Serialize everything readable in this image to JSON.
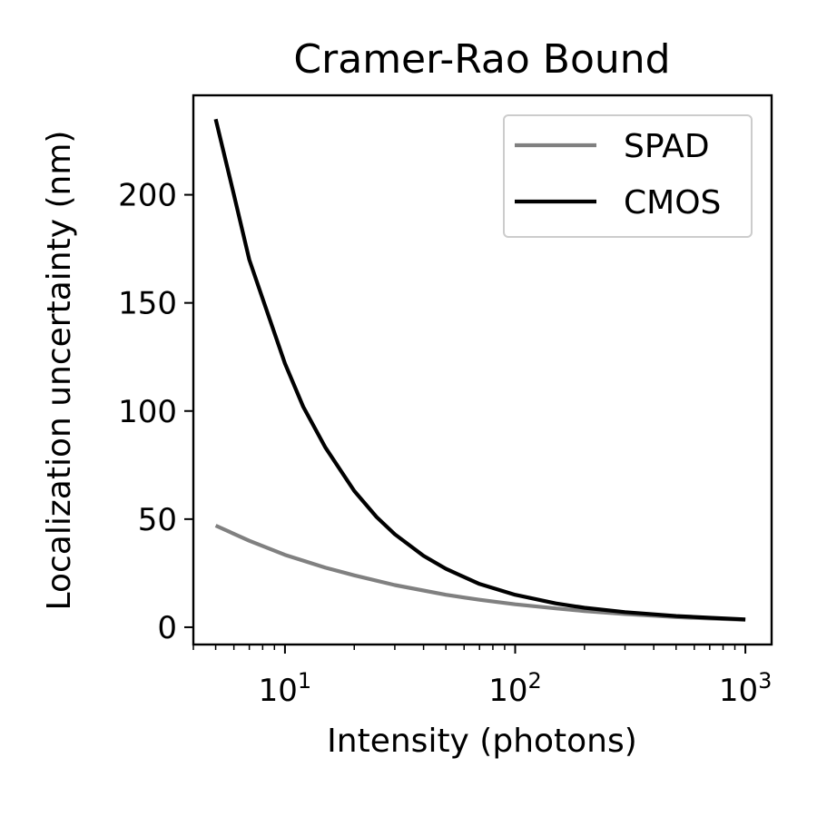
{
  "chart_data": {
    "type": "line",
    "title": "Cramer-Rao Bound",
    "xlabel": "Intensity (photons)",
    "ylabel": "Localization uncertainty (nm)",
    "xscale": "log",
    "xlim": [
      4,
      1300
    ],
    "ylim": [
      -8,
      246
    ],
    "grid": false,
    "legend_position": "top-right",
    "x_ticks": [
      {
        "value": 10,
        "base": "10",
        "exp": "1"
      },
      {
        "value": 100,
        "base": "10",
        "exp": "2"
      },
      {
        "value": 1000,
        "base": "10",
        "exp": "3"
      }
    ],
    "y_ticks": [
      0,
      50,
      100,
      150,
      200
    ],
    "series": [
      {
        "name": "SPAD",
        "color": "#808080",
        "x": [
          5,
          7,
          10,
          15,
          20,
          30,
          50,
          70,
          100,
          150,
          200,
          300,
          500,
          700,
          1000
        ],
        "y": [
          47,
          40,
          33.5,
          27.5,
          24,
          19.5,
          15,
          12.7,
          10.6,
          8.7,
          7.5,
          6.1,
          4.7,
          4.0,
          3.4
        ]
      },
      {
        "name": "CMOS",
        "color": "#000000",
        "x": [
          5,
          6,
          7,
          8,
          10,
          12,
          15,
          20,
          25,
          30,
          40,
          50,
          70,
          100,
          150,
          200,
          300,
          500,
          700,
          1000
        ],
        "y": [
          235,
          200,
          170,
          152,
          122,
          102,
          83,
          63,
          51,
          43,
          33,
          27,
          20,
          15,
          11,
          9,
          7,
          5.2,
          4.4,
          3.6
        ]
      }
    ]
  }
}
